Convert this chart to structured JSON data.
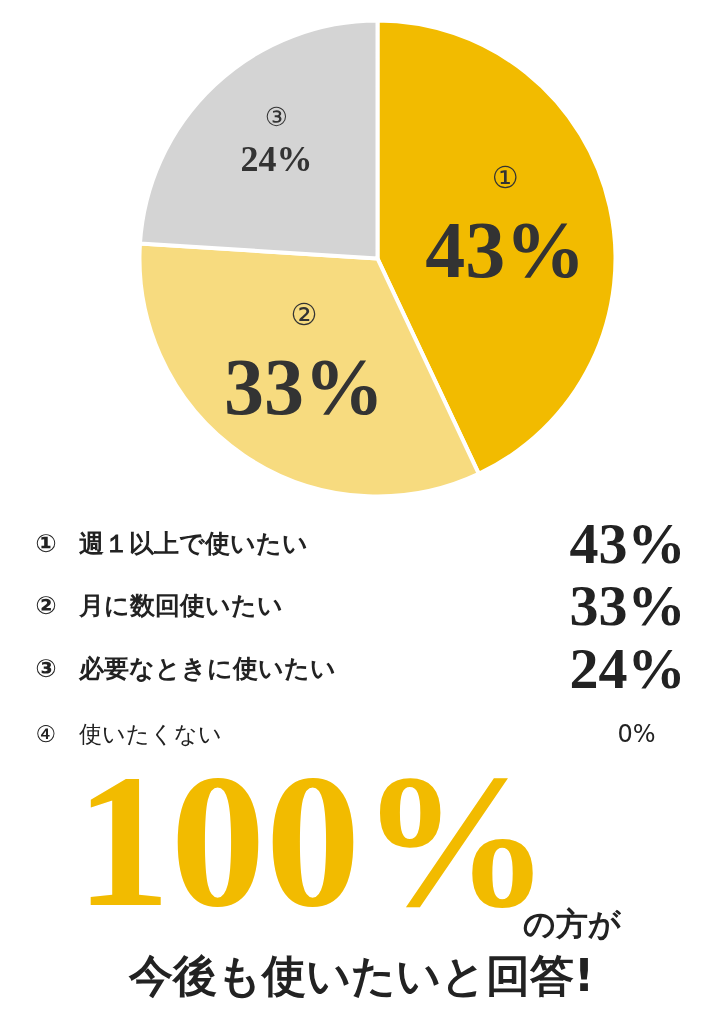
{
  "chart_data": {
    "type": "pie",
    "categories": [
      "①",
      "②",
      "③",
      "④"
    ],
    "values": [
      43,
      33,
      24,
      0
    ],
    "colors": [
      "#f2bb00",
      "#f7db7f",
      "#d4d4d4",
      "#eeeeee"
    ],
    "value_labels": [
      "43%",
      "33%",
      "24%",
      "0%"
    ],
    "data_labels": true,
    "annotations": [
      "週１以上で使いたい",
      "月に数回使いたい",
      "必要なときに使いたい",
      "使いたくない",
      "100%",
      "の方が",
      "今後も使いたいと回答!"
    ]
  }
}
